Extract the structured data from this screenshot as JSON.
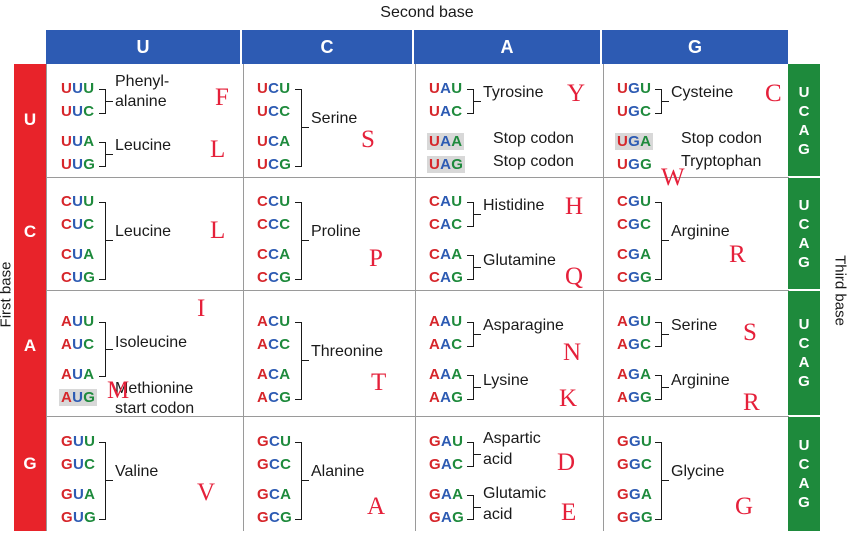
{
  "titles": {
    "second": "Second base",
    "first": "First base",
    "third": "Third base"
  },
  "bases": [
    "U",
    "C",
    "A",
    "G"
  ],
  "third_bases": [
    "U",
    "C",
    "A",
    "G"
  ],
  "colors": {
    "first_base": "#d6262b",
    "second_base": "#2d5bb3",
    "third_base": "#1e8a3c",
    "annotation": "#e5203a"
  },
  "cells": {
    "UU": {
      "codons": [
        [
          "U",
          "U",
          "U"
        ],
        [
          "U",
          "U",
          "C"
        ],
        [
          "U",
          "U",
          "A"
        ],
        [
          "U",
          "U",
          "G"
        ]
      ],
      "aa1": "Phenyl-",
      "aa1b": "alanine",
      "aa2": "Leucine",
      "l1": "F",
      "l2": "L"
    },
    "UC": {
      "codons": [
        [
          "U",
          "C",
          "U"
        ],
        [
          "U",
          "C",
          "C"
        ],
        [
          "U",
          "C",
          "A"
        ],
        [
          "U",
          "C",
          "G"
        ]
      ],
      "aa1": "Serine",
      "l1": "S"
    },
    "UA": {
      "codons": [
        [
          "U",
          "A",
          "U"
        ],
        [
          "U",
          "A",
          "C"
        ],
        [
          "U",
          "A",
          "A"
        ],
        [
          "U",
          "A",
          "G"
        ]
      ],
      "aa1": "Tyrosine",
      "l1": "Y",
      "stop1": "Stop codon",
      "stop2": "Stop codon"
    },
    "UG": {
      "codons": [
        [
          "U",
          "G",
          "U"
        ],
        [
          "U",
          "G",
          "C"
        ],
        [
          "U",
          "G",
          "A"
        ],
        [
          "U",
          "G",
          "G"
        ]
      ],
      "aa1": "Cysteine",
      "l1": "C",
      "stop1": "Stop codon",
      "aa2": "Tryptophan",
      "l2": "W"
    },
    "CU": {
      "codons": [
        [
          "C",
          "U",
          "U"
        ],
        [
          "C",
          "U",
          "C"
        ],
        [
          "C",
          "U",
          "A"
        ],
        [
          "C",
          "U",
          "G"
        ]
      ],
      "aa1": "Leucine",
      "l1": "L"
    },
    "CC": {
      "codons": [
        [
          "C",
          "C",
          "U"
        ],
        [
          "C",
          "C",
          "C"
        ],
        [
          "C",
          "C",
          "A"
        ],
        [
          "C",
          "C",
          "G"
        ]
      ],
      "aa1": "Proline",
      "l1": "P"
    },
    "CA": {
      "codons": [
        [
          "C",
          "A",
          "U"
        ],
        [
          "C",
          "A",
          "C"
        ],
        [
          "C",
          "A",
          "A"
        ],
        [
          "C",
          "A",
          "G"
        ]
      ],
      "aa1": "Histidine",
      "l1": "H",
      "aa2": "Glutamine",
      "l2": "Q"
    },
    "CG": {
      "codons": [
        [
          "C",
          "G",
          "U"
        ],
        [
          "C",
          "G",
          "C"
        ],
        [
          "C",
          "G",
          "A"
        ],
        [
          "C",
          "G",
          "G"
        ]
      ],
      "aa1": "Arginine",
      "l1": "R"
    },
    "AU": {
      "codons": [
        [
          "A",
          "U",
          "U"
        ],
        [
          "A",
          "U",
          "C"
        ],
        [
          "A",
          "U",
          "A"
        ],
        [
          "A",
          "U",
          "G"
        ]
      ],
      "aa1": "Isoleucine",
      "l1": "I",
      "aa2": "Methionine",
      "aa2b": "start codon",
      "l2": "M"
    },
    "AC": {
      "codons": [
        [
          "A",
          "C",
          "U"
        ],
        [
          "A",
          "C",
          "C"
        ],
        [
          "A",
          "C",
          "A"
        ],
        [
          "A",
          "C",
          "G"
        ]
      ],
      "aa1": "Threonine",
      "l1": "T"
    },
    "AA": {
      "codons": [
        [
          "A",
          "A",
          "U"
        ],
        [
          "A",
          "A",
          "C"
        ],
        [
          "A",
          "A",
          "A"
        ],
        [
          "A",
          "A",
          "G"
        ]
      ],
      "aa1": "Asparagine",
      "l1": "N",
      "aa2": "Lysine",
      "l2": "K"
    },
    "AG": {
      "codons": [
        [
          "A",
          "G",
          "U"
        ],
        [
          "A",
          "G",
          "C"
        ],
        [
          "A",
          "G",
          "A"
        ],
        [
          "A",
          "G",
          "G"
        ]
      ],
      "aa1": "Serine",
      "l1": "S",
      "aa2": "Arginine",
      "l2": "R"
    },
    "GU": {
      "codons": [
        [
          "G",
          "U",
          "U"
        ],
        [
          "G",
          "U",
          "C"
        ],
        [
          "G",
          "U",
          "A"
        ],
        [
          "G",
          "U",
          "G"
        ]
      ],
      "aa1": "Valine",
      "l1": "V"
    },
    "GC": {
      "codons": [
        [
          "G",
          "C",
          "U"
        ],
        [
          "G",
          "C",
          "C"
        ],
        [
          "G",
          "C",
          "A"
        ],
        [
          "G",
          "C",
          "G"
        ]
      ],
      "aa1": "Alanine",
      "l1": "A"
    },
    "GA": {
      "codons": [
        [
          "G",
          "A",
          "U"
        ],
        [
          "G",
          "A",
          "C"
        ],
        [
          "G",
          "A",
          "A"
        ],
        [
          "G",
          "A",
          "G"
        ]
      ],
      "aa1": "Aspartic",
      "aa1b": "acid",
      "l1": "D",
      "aa2": "Glutamic",
      "aa2b": "acid",
      "l2": "E"
    },
    "GG": {
      "codons": [
        [
          "G",
          "G",
          "U"
        ],
        [
          "G",
          "G",
          "C"
        ],
        [
          "G",
          "G",
          "A"
        ],
        [
          "G",
          "G",
          "G"
        ]
      ],
      "aa1": "Glycine",
      "l1": "G"
    }
  }
}
